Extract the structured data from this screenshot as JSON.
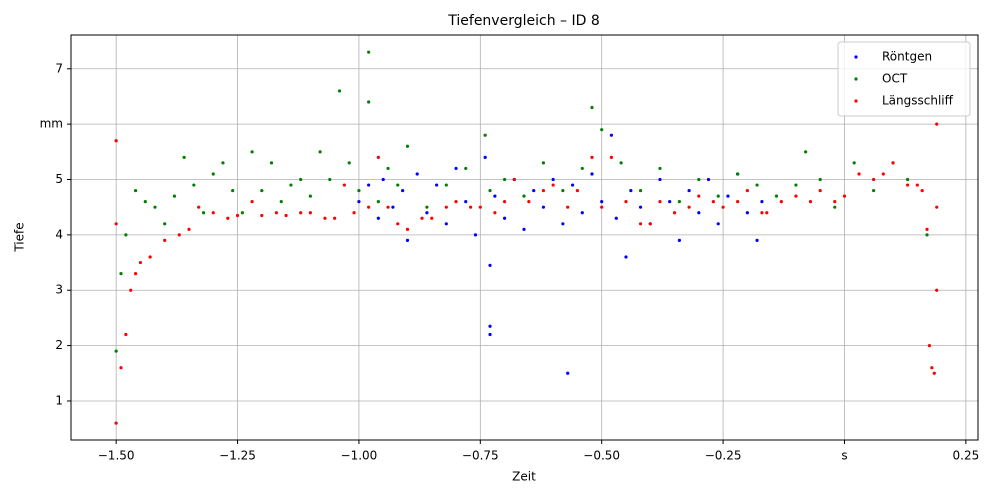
{
  "chart_data": {
    "type": "scatter",
    "title": "Tiefenvergleich – ID 8",
    "x_label": "Zeit",
    "y_label": "Tiefe",
    "xlim": [
      -1.593,
      0.275
    ],
    "ylim": [
      0.295,
      7.61
    ],
    "xticks": [
      {
        "value": -1.5,
        "label": "−1.50"
      },
      {
        "value": -1.25,
        "label": "−1.25"
      },
      {
        "value": -1.0,
        "label": "−1.00"
      },
      {
        "value": -0.75,
        "label": "−0.75"
      },
      {
        "value": -0.5,
        "label": "−0.50"
      },
      {
        "value": -0.25,
        "label": "−0.25"
      },
      {
        "value": 0,
        "label": "s"
      },
      {
        "value": 0.25,
        "label": "0.25"
      }
    ],
    "yticks": [
      1,
      2,
      3,
      4,
      5,
      {
        "value": 6,
        "label": "mm"
      },
      7
    ],
    "grid": true,
    "legend": "upper right",
    "series": [
      {
        "name": "Röntgen",
        "color": "#0000ff",
        "x": [
          -1.0,
          -0.98,
          -0.96,
          -0.95,
          -0.93,
          -0.91,
          -0.9,
          -0.88,
          -0.86,
          -0.84,
          -0.82,
          -0.8,
          -0.78,
          -0.76,
          -0.74,
          -0.73,
          -0.73,
          -0.73,
          -0.72,
          -0.7,
          -0.68,
          -0.66,
          -0.64,
          -0.62,
          -0.6,
          -0.58,
          -0.57,
          -0.56,
          -0.54,
          -0.52,
          -0.5,
          -0.48,
          -0.47,
          -0.45,
          -0.44,
          -0.42,
          -0.4,
          -0.38,
          -0.36,
          -0.34,
          -0.32,
          -0.3,
          -0.28,
          -0.26,
          -0.24,
          -0.22,
          -0.2,
          -0.18,
          -0.17
        ],
        "values": [
          4.6,
          4.9,
          4.3,
          5.0,
          4.5,
          4.8,
          3.9,
          5.1,
          4.4,
          4.9,
          4.2,
          5.2,
          4.6,
          4.0,
          5.4,
          2.2,
          2.35,
          3.45,
          4.7,
          4.3,
          5.0,
          4.1,
          4.8,
          4.5,
          5.0,
          4.2,
          1.5,
          4.9,
          4.4,
          5.1,
          4.6,
          5.8,
          4.3,
          3.6,
          4.8,
          4.5,
          4.2,
          5.0,
          4.6,
          3.9,
          4.8,
          4.4,
          5.0,
          4.2,
          4.7,
          5.1,
          4.4,
          3.9,
          4.6
        ]
      },
      {
        "name": "OCT",
        "color": "#008000",
        "x": [
          -1.5,
          -1.49,
          -1.48,
          -1.46,
          -1.44,
          -1.42,
          -1.4,
          -1.38,
          -1.36,
          -1.34,
          -1.32,
          -1.3,
          -1.28,
          -1.26,
          -1.24,
          -1.22,
          -1.2,
          -1.18,
          -1.16,
          -1.14,
          -1.12,
          -1.1,
          -1.08,
          -1.06,
          -1.04,
          -1.02,
          -1.0,
          -0.98,
          -0.98,
          -0.96,
          -0.94,
          -0.92,
          -0.9,
          -0.86,
          -0.82,
          -0.78,
          -0.74,
          -0.73,
          -0.7,
          -0.66,
          -0.62,
          -0.58,
          -0.54,
          -0.52,
          -0.5,
          -0.46,
          -0.42,
          -0.38,
          -0.34,
          -0.3,
          -0.26,
          -0.22,
          -0.18,
          -0.14,
          -0.1,
          -0.08,
          -0.05,
          -0.02,
          0.02,
          0.06,
          0.1,
          0.13,
          0.17
        ],
        "values": [
          1.9,
          3.3,
          4.0,
          4.8,
          4.6,
          4.5,
          4.2,
          4.7,
          5.4,
          4.9,
          4.4,
          5.1,
          5.3,
          4.8,
          4.4,
          5.5,
          4.8,
          5.3,
          4.6,
          4.9,
          5.0,
          4.7,
          5.5,
          5.0,
          6.6,
          5.3,
          4.8,
          7.3,
          6.4,
          4.6,
          5.2,
          4.9,
          5.6,
          4.5,
          4.9,
          5.2,
          5.8,
          4.8,
          5.0,
          4.7,
          5.3,
          4.8,
          5.2,
          6.3,
          5.9,
          5.3,
          4.8,
          5.2,
          4.6,
          5.0,
          4.7,
          5.1,
          4.9,
          4.7,
          4.9,
          5.5,
          5.0,
          4.5,
          5.3,
          4.8,
          5.3,
          5.0,
          4.0
        ]
      },
      {
        "name": "Längsschliff",
        "color": "#ff0000",
        "x": [
          -1.5,
          -1.5,
          -1.5,
          -1.49,
          -1.48,
          -1.47,
          -1.46,
          -1.45,
          -1.43,
          -1.4,
          -1.37,
          -1.35,
          -1.33,
          -1.3,
          -1.27,
          -1.25,
          -1.22,
          -1.2,
          -1.17,
          -1.15,
          -1.12,
          -1.1,
          -1.07,
          -1.05,
          -1.03,
          -1.01,
          -0.98,
          -0.96,
          -0.94,
          -0.92,
          -0.9,
          -0.87,
          -0.85,
          -0.82,
          -0.8,
          -0.77,
          -0.75,
          -0.72,
          -0.7,
          -0.68,
          -0.65,
          -0.62,
          -0.6,
          -0.57,
          -0.55,
          -0.52,
          -0.5,
          -0.48,
          -0.45,
          -0.42,
          -0.4,
          -0.38,
          -0.35,
          -0.32,
          -0.3,
          -0.27,
          -0.25,
          -0.22,
          -0.2,
          -0.17,
          -0.16,
          -0.13,
          -0.1,
          -0.07,
          -0.05,
          -0.02,
          0.0,
          0.03,
          0.06,
          0.08,
          0.1,
          0.13,
          0.15,
          0.16,
          0.17,
          0.175,
          0.18,
          0.185,
          0.19,
          0.19,
          0.19
        ],
        "values": [
          0.6,
          5.7,
          4.2,
          1.6,
          2.2,
          3.0,
          3.3,
          3.5,
          3.6,
          3.9,
          4.0,
          4.1,
          4.5,
          4.4,
          4.3,
          4.35,
          4.6,
          4.35,
          4.4,
          4.35,
          4.4,
          4.4,
          4.3,
          4.3,
          4.9,
          4.4,
          4.5,
          5.4,
          4.5,
          4.2,
          4.1,
          4.3,
          4.3,
          4.5,
          4.6,
          4.5,
          4.5,
          4.4,
          4.6,
          5.0,
          4.6,
          4.8,
          4.9,
          4.5,
          4.8,
          5.4,
          4.5,
          5.4,
          4.6,
          4.2,
          4.2,
          4.6,
          4.4,
          4.5,
          4.7,
          4.6,
          4.5,
          4.6,
          4.8,
          4.4,
          4.4,
          4.6,
          4.7,
          4.6,
          4.8,
          4.6,
          4.7,
          5.1,
          5.0,
          5.1,
          5.3,
          4.9,
          4.9,
          4.8,
          4.1,
          2.0,
          1.6,
          1.5,
          6.0,
          4.5,
          3.0
        ]
      }
    ]
  }
}
